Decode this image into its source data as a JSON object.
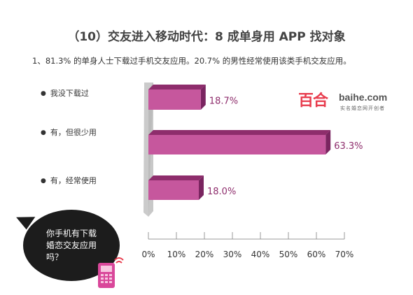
{
  "title": "（10）交友进入移动时代：8 成单身用 APP 找对象",
  "subtitle": "1、81.3% 的单身人士下载过手机交友应用。20.7% 的男性经常使用该类手机交友应用。",
  "logo": {
    "cn": "百合",
    "en": "baihe.com",
    "tag": "实名婚恋网开创者"
  },
  "bubble": {
    "line1": "你手机有下载",
    "line2": "婚恋交友应用",
    "line3": "吗？"
  },
  "colors": {
    "bar_front": "#c6579d",
    "bar_top": "#8e2d6c",
    "bar_side": "#7a2560",
    "wall": "#c8c8c8",
    "value_label": "#8e2d6c"
  },
  "chart_data": {
    "type": "bar",
    "orientation": "horizontal",
    "style": "3d",
    "categories": [
      "我没下载过",
      "有，但很少用",
      "有，经常使用"
    ],
    "values": [
      18.7,
      63.3,
      18.0
    ],
    "value_labels": [
      "18.7%",
      "63.3%",
      "18.0%"
    ],
    "x_ticks": [
      "0%",
      "10%",
      "20%",
      "30%",
      "40%",
      "50%",
      "60%",
      "70%"
    ],
    "xlim": [
      0,
      70
    ],
    "grid": false,
    "legend": "none"
  }
}
